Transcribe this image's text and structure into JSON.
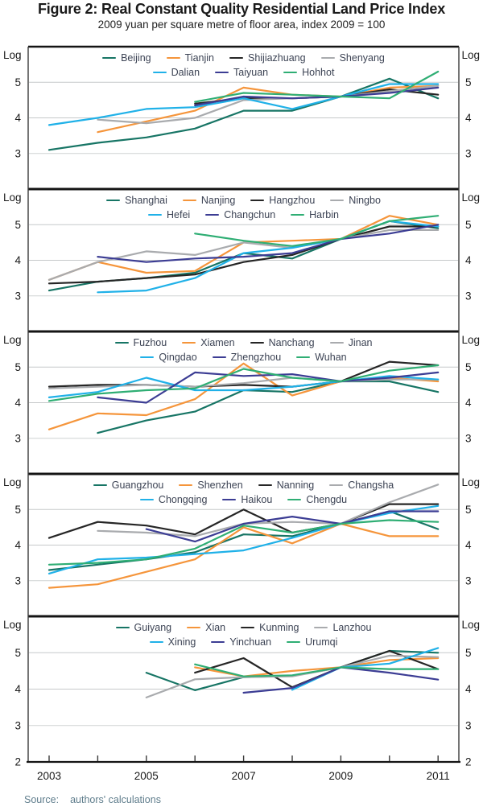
{
  "title": "Figure 2: Real Constant Quality Residential Land Price Index",
  "subtitle": "2009 yuan per square metre of floor area, index 2009 = 100",
  "source": {
    "label": "Source:",
    "text": "authors' calculations"
  },
  "chart_data": {
    "type": "line",
    "x": [
      2003,
      2004,
      2005,
      2006,
      2007,
      2008,
      2009,
      2010,
      2011
    ],
    "x_tick_labels": [
      2003,
      2005,
      2007,
      2009,
      2011
    ],
    "y_axis_label": "Log",
    "y_ticks": [
      5,
      4,
      3
    ],
    "y_bottom_tick": 2,
    "ylim": [
      2,
      6
    ],
    "grid": true,
    "legend_position": "top-center",
    "panels": [
      {
        "name": "panel-1-north",
        "series": [
          {
            "name": "Beijing",
            "color": "#177565",
            "values": [
              3.1,
              3.3,
              3.45,
              3.7,
              4.2,
              4.2,
              4.6,
              5.1,
              4.55
            ]
          },
          {
            "name": "Tianjin",
            "color": "#f5953b",
            "values": [
              null,
              3.6,
              3.9,
              4.2,
              4.85,
              4.65,
              4.6,
              4.85,
              4.9
            ]
          },
          {
            "name": "Shijiazhuang",
            "color": "#262626",
            "values": [
              null,
              null,
              null,
              4.4,
              4.55,
              4.55,
              4.6,
              4.8,
              4.65
            ]
          },
          {
            "name": "Shenyang",
            "color": "#a9abae",
            "values": [
              null,
              3.95,
              3.85,
              4.0,
              4.5,
              4.55,
              4.6,
              4.75,
              4.9
            ]
          },
          {
            "name": "Dalian",
            "color": "#20b1e8",
            "values": [
              3.8,
              4.0,
              4.25,
              4.3,
              4.55,
              4.25,
              4.6,
              4.95,
              4.95
            ]
          },
          {
            "name": "Taiyuan",
            "color": "#3c3d94",
            "values": [
              null,
              null,
              null,
              4.35,
              4.6,
              4.55,
              4.6,
              4.7,
              4.85
            ]
          },
          {
            "name": "Hohhot",
            "color": "#2fae74",
            "values": [
              null,
              null,
              null,
              4.45,
              4.7,
              4.65,
              4.6,
              4.55,
              5.3
            ]
          }
        ]
      },
      {
        "name": "panel-2-east",
        "series": [
          {
            "name": "Shanghai",
            "color": "#177565",
            "values": [
              3.15,
              3.4,
              3.5,
              3.65,
              4.2,
              4.05,
              4.6,
              5.1,
              4.9
            ]
          },
          {
            "name": "Nanjing",
            "color": "#f5953b",
            "values": [
              3.45,
              3.95,
              3.65,
              3.7,
              4.5,
              4.55,
              4.6,
              5.25,
              5.0
            ]
          },
          {
            "name": "Hangzhou",
            "color": "#262626",
            "values": [
              3.35,
              3.4,
              3.5,
              3.6,
              3.95,
              4.15,
              4.6,
              4.95,
              4.95
            ]
          },
          {
            "name": "Ningbo",
            "color": "#a9abae",
            "values": [
              3.45,
              3.95,
              4.25,
              4.15,
              4.5,
              4.35,
              4.6,
              4.85,
              4.85
            ]
          },
          {
            "name": "Hefei",
            "color": "#20b1e8",
            "values": [
              null,
              3.1,
              3.15,
              3.5,
              4.2,
              4.35,
              4.6,
              5.1,
              4.95
            ]
          },
          {
            "name": "Changchun",
            "color": "#3c3d94",
            "values": [
              null,
              4.1,
              3.95,
              4.05,
              4.1,
              4.2,
              4.6,
              4.75,
              5.0
            ]
          },
          {
            "name": "Harbin",
            "color": "#2fae74",
            "values": [
              null,
              null,
              null,
              4.75,
              4.55,
              4.4,
              4.6,
              5.1,
              5.25
            ]
          }
        ]
      },
      {
        "name": "panel-3-central",
        "series": [
          {
            "name": "Fuzhou",
            "color": "#177565",
            "values": [
              null,
              3.15,
              3.5,
              3.75,
              4.35,
              4.3,
              4.6,
              4.6,
              4.3
            ]
          },
          {
            "name": "Xiamen",
            "color": "#f5953b",
            "values": [
              3.25,
              3.7,
              3.65,
              4.1,
              5.1,
              4.2,
              4.6,
              4.7,
              4.6
            ]
          },
          {
            "name": "Nanchang",
            "color": "#262626",
            "values": [
              4.45,
              4.5,
              4.5,
              4.45,
              4.5,
              4.45,
              4.6,
              5.15,
              5.05
            ]
          },
          {
            "name": "Jinan",
            "color": "#a9abae",
            "values": [
              4.4,
              4.45,
              4.5,
              4.45,
              4.55,
              4.7,
              4.6,
              4.65,
              4.65
            ]
          },
          {
            "name": "Qingdao",
            "color": "#20b1e8",
            "values": [
              4.15,
              4.3,
              4.7,
              4.35,
              4.35,
              4.45,
              4.6,
              4.75,
              4.65
            ]
          },
          {
            "name": "Zhengzhou",
            "color": "#3c3d94",
            "values": [
              null,
              4.15,
              4.0,
              4.85,
              4.75,
              4.8,
              4.6,
              4.7,
              4.85
            ]
          },
          {
            "name": "Wuhan",
            "color": "#2fae74",
            "values": [
              4.05,
              4.25,
              4.35,
              4.4,
              4.95,
              4.7,
              4.6,
              4.9,
              5.05
            ]
          }
        ]
      },
      {
        "name": "panel-4-south",
        "series": [
          {
            "name": "Guangzhou",
            "color": "#177565",
            "values": [
              3.3,
              3.45,
              3.6,
              3.8,
              4.3,
              4.25,
              4.6,
              4.95,
              4.45
            ]
          },
          {
            "name": "Shenzhen",
            "color": "#f5953b",
            "values": [
              2.8,
              2.9,
              3.25,
              3.6,
              4.5,
              4.05,
              4.6,
              4.25,
              4.25
            ]
          },
          {
            "name": "Nanning",
            "color": "#262626",
            "values": [
              4.2,
              4.65,
              4.55,
              4.3,
              5.0,
              4.35,
              4.6,
              5.15,
              5.15
            ]
          },
          {
            "name": "Changsha",
            "color": "#a9abae",
            "values": [
              null,
              4.4,
              4.35,
              4.25,
              4.6,
              4.65,
              4.6,
              5.2,
              5.7
            ]
          },
          {
            "name": "Chongqing",
            "color": "#20b1e8",
            "values": [
              3.2,
              3.6,
              3.65,
              3.75,
              3.85,
              4.2,
              4.6,
              4.9,
              5.1
            ]
          },
          {
            "name": "Haikou",
            "color": "#3c3d94",
            "values": [
              null,
              null,
              4.45,
              4.1,
              4.6,
              4.8,
              4.6,
              4.95,
              4.95
            ]
          },
          {
            "name": "Chengdu",
            "color": "#2fae74",
            "values": [
              3.45,
              3.5,
              3.6,
              3.9,
              4.55,
              4.35,
              4.6,
              4.7,
              4.65
            ]
          }
        ]
      },
      {
        "name": "panel-5-west",
        "series": [
          {
            "name": "Guiyang",
            "color": "#177565",
            "values": [
              null,
              null,
              4.45,
              3.97,
              4.33,
              4.36,
              4.6,
              5.05,
              5.0
            ]
          },
          {
            "name": "Xian",
            "color": "#f5953b",
            "values": [
              null,
              null,
              null,
              4.6,
              4.35,
              4.5,
              4.6,
              4.8,
              4.85
            ]
          },
          {
            "name": "Kunming",
            "color": "#262626",
            "values": [
              null,
              null,
              null,
              4.45,
              4.85,
              4.05,
              4.6,
              5.05,
              4.55
            ]
          },
          {
            "name": "Lanzhou",
            "color": "#a9abae",
            "values": [
              null,
              null,
              3.77,
              4.27,
              4.33,
              4.35,
              4.6,
              4.92,
              4.88
            ]
          },
          {
            "name": "Xining",
            "color": "#20b1e8",
            "values": [
              null,
              null,
              null,
              null,
              null,
              3.98,
              4.6,
              4.7,
              5.13
            ]
          },
          {
            "name": "Yinchuan",
            "color": "#3c3d94",
            "values": [
              null,
              null,
              null,
              null,
              3.9,
              4.03,
              4.6,
              4.45,
              4.26
            ]
          },
          {
            "name": "Urumqi",
            "color": "#2fae74",
            "values": [
              null,
              null,
              null,
              4.68,
              4.35,
              4.38,
              4.6,
              4.55,
              4.55
            ]
          }
        ]
      }
    ]
  }
}
